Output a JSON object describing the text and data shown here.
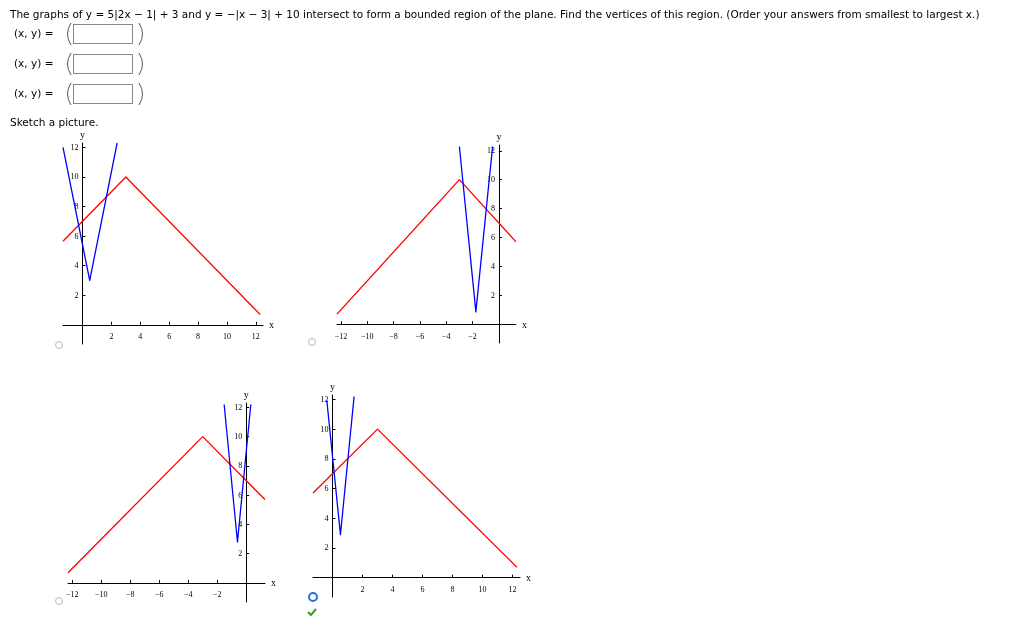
{
  "chart_data": [
    {
      "type": "other",
      "title": "The graphs of y = 5|2x − 1| + 3 and y = −|x − 3| + 10 intersect to form a bounded region of the plane. Find the vertices of this region. (Order your answers from smallest to largest x.)",
      "annotations": [
        "(x, y) =",
        "(x, y) =",
        "(x, y) =",
        "Sketch a picture."
      ]
    },
    {
      "type": "line",
      "xlabel": "x",
      "ylabel": "y",
      "xlim": [
        -1.35,
        12.5
      ],
      "ylim": [
        -1.3,
        12.3
      ],
      "xticks": [
        2,
        4,
        6,
        8,
        10,
        12
      ],
      "yticks": [
        2,
        4,
        6,
        8,
        10,
        12
      ],
      "marker": "none",
      "series": [
        {
          "color": "#ff0000",
          "x": [
            -1.35,
            3,
            12.3
          ],
          "values": [
            5.65,
            10,
            0.7
          ]
        },
        {
          "color": "#0000ff",
          "x": [
            -1.35,
            0.5,
            2.4
          ],
          "values": [
            12,
            3,
            12.3
          ]
        }
      ]
    },
    {
      "type": "line",
      "xlabel": "x",
      "ylabel": "y",
      "xlim": [
        -12.3,
        1.3
      ],
      "ylim": [
        -1.3,
        12.4
      ],
      "xticks": [
        -12,
        -10,
        -8,
        -6,
        -4,
        -2
      ],
      "yticks": [
        2,
        4,
        6,
        8,
        10,
        12
      ],
      "marker": "none",
      "series": [
        {
          "color": "#ff0000",
          "x": [
            -12.3,
            -3,
            1.3
          ],
          "values": [
            0.7,
            10,
            5.7
          ]
        },
        {
          "color": "#0000ff",
          "x": [
            -3,
            -1.75,
            -0.48
          ],
          "values": [
            12.3,
            0.85,
            12.3
          ]
        }
      ]
    },
    {
      "type": "line",
      "xlabel": "x",
      "ylabel": "y",
      "xlim": [
        -12.3,
        1.3
      ],
      "ylim": [
        -1.3,
        12.3
      ],
      "xticks": [
        -12,
        -10,
        -8,
        -6,
        -4,
        -2
      ],
      "yticks": [
        2,
        4,
        6,
        8,
        10,
        12
      ],
      "marker": "none",
      "series": [
        {
          "color": "#ff0000",
          "x": [
            -12.3,
            -3,
            1.3
          ],
          "values": [
            0.7,
            10,
            5.7
          ]
        },
        {
          "color": "#0000ff",
          "x": [
            -1.52,
            -0.6,
            0.32
          ],
          "values": [
            12.2,
            2.8,
            12.2
          ]
        }
      ]
    },
    {
      "type": "line",
      "xlabel": "x",
      "ylabel": "y",
      "xlim": [
        -1.3,
        12.5
      ],
      "ylim": [
        -1.3,
        12.3
      ],
      "xticks": [
        2,
        4,
        6,
        8,
        10,
        12
      ],
      "yticks": [
        2,
        4,
        6,
        8,
        10,
        12
      ],
      "marker": "none",
      "series": [
        {
          "color": "#ff0000",
          "x": [
            -1.3,
            3,
            12.3
          ],
          "values": [
            5.7,
            10,
            0.7
          ]
        },
        {
          "color": "#0000ff",
          "x": [
            -0.38,
            0.53,
            1.44
          ],
          "values": [
            11.95,
            2.9,
            12.2
          ]
        }
      ]
    }
  ]
}
